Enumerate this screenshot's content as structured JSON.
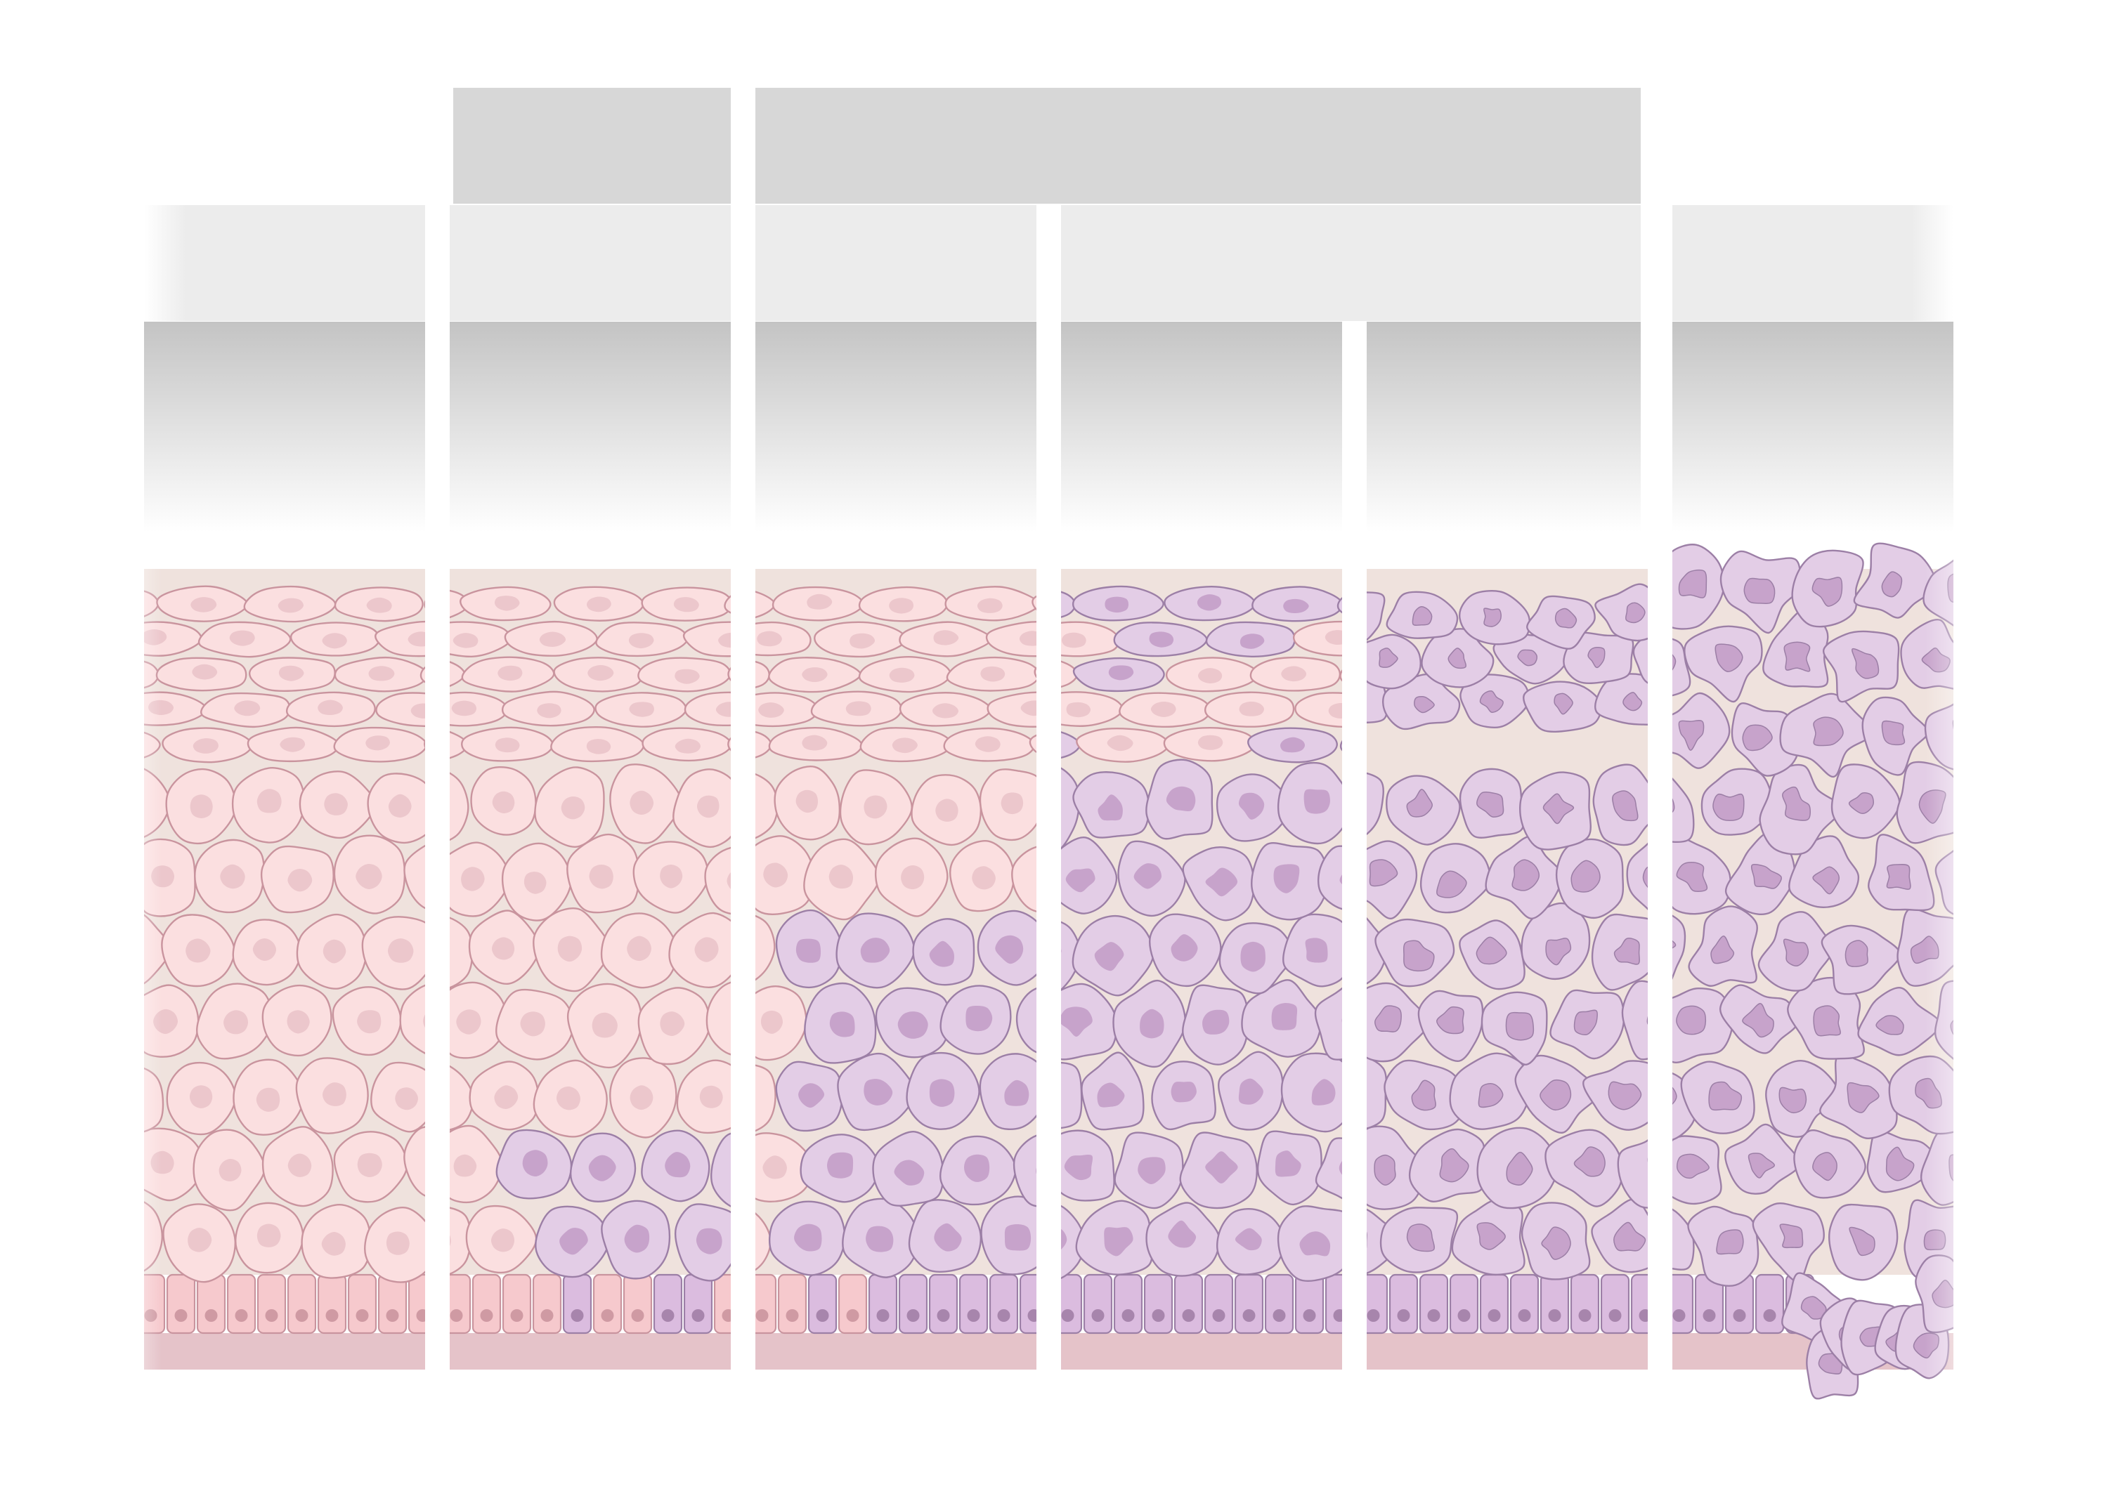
{
  "diagram": {
    "title": "",
    "colors": {
      "header_top": "#d7d7d7",
      "header_mid": "#ececec",
      "gradient_top": "#c4c4c4",
      "normal_cell_fill": "#fbdfe0",
      "normal_cell_stroke": "#c9949e",
      "normal_nucleus": "#ecc7cc",
      "abnormal_cell_fill": "#e3cde6",
      "abnormal_cell_stroke": "#9c7fa6",
      "abnormal_nucleus": "#c7a3cb",
      "basal_normal_fill": "#f6c9cd",
      "basal_abnormal_fill": "#dbbcdf",
      "basement_membrane": "#e5c3c9",
      "stroma": "#efe2dd"
    },
    "top_headers": [
      {
        "label": ""
      },
      {
        "label": ""
      }
    ],
    "mid_headers": [
      {
        "label": ""
      },
      {
        "label": ""
      },
      {
        "label": ""
      },
      {
        "label": ""
      },
      {
        "label": ""
      },
      {
        "label": ""
      }
    ],
    "panels": [
      {
        "stage": "normal",
        "abnormal_fraction": 0.0
      },
      {
        "stage": "mild",
        "abnormal_fraction": 0.2
      },
      {
        "stage": "moderate",
        "abnormal_fraction": 0.5
      },
      {
        "stage": "severe",
        "abnormal_fraction": 0.8
      },
      {
        "stage": "in-situ",
        "abnormal_fraction": 1.0
      },
      {
        "stage": "invasive",
        "abnormal_fraction": 1.0
      }
    ]
  }
}
